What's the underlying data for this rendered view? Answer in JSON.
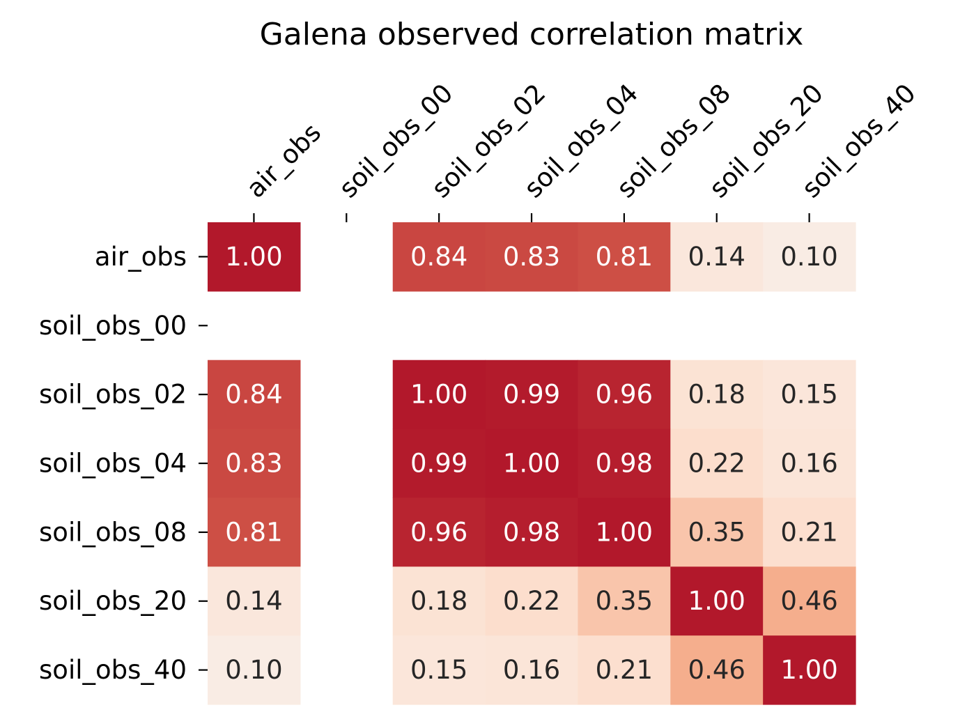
{
  "chart_data": {
    "type": "heatmap",
    "title": "Galena observed correlation matrix",
    "x_labels": [
      "air_obs",
      "soil_obs_00",
      "soil_obs_02",
      "soil_obs_04",
      "soil_obs_08",
      "soil_obs_20",
      "soil_obs_40"
    ],
    "y_labels": [
      "air_obs",
      "soil_obs_00",
      "soil_obs_02",
      "soil_obs_04",
      "soil_obs_08",
      "soil_obs_20",
      "soil_obs_40"
    ],
    "values": [
      [
        1.0,
        null,
        0.84,
        0.83,
        0.81,
        0.14,
        0.1
      ],
      [
        null,
        null,
        null,
        null,
        null,
        null,
        null
      ],
      [
        0.84,
        null,
        1.0,
        0.99,
        0.96,
        0.18,
        0.15
      ],
      [
        0.83,
        null,
        0.99,
        1.0,
        0.98,
        0.22,
        0.16
      ],
      [
        0.81,
        null,
        0.96,
        0.98,
        1.0,
        0.35,
        0.21
      ],
      [
        0.14,
        null,
        0.18,
        0.22,
        0.35,
        1.0,
        0.46
      ],
      [
        0.1,
        null,
        0.15,
        0.16,
        0.21,
        0.46,
        1.0
      ]
    ],
    "value_range": [
      -1,
      1
    ],
    "colormap": "RdBu_r",
    "annotation_format": "0.00",
    "x_tick_position": "top",
    "x_tick_rotation": 45,
    "grid": false,
    "colorbar": false
  }
}
